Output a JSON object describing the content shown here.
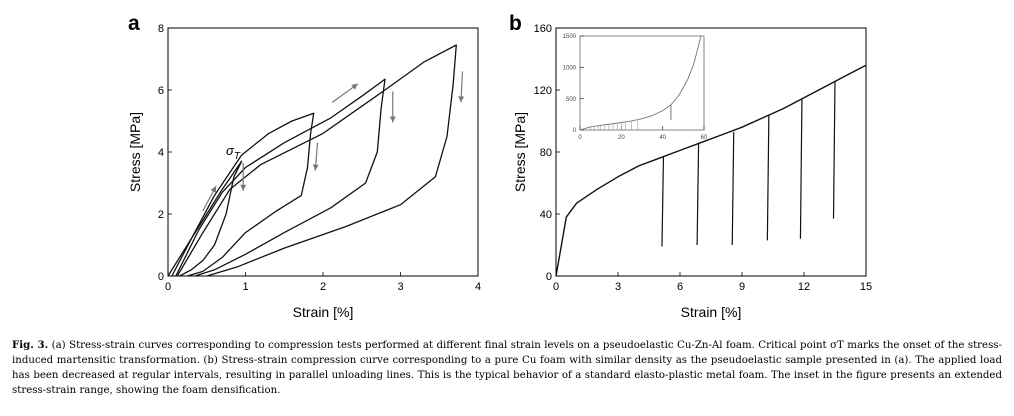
{
  "figure": {
    "caption_label": "Fig. 3.",
    "caption_text": "(a) Stress-strain curves corresponding to compression tests performed at different final strain levels on a pseudoelastic Cu-Zn-Al foam. Critical point σT marks the onset of the stress-induced martensitic transformation. (b) Stress-strain compression curve corresponding to a pure Cu foam with similar density as the pseudoelastic sample presented in (a). The applied load has been decreased at regular intervals, resulting in parallel unloading lines. This is the typical behavior of a standard elasto-plastic metal foam. The inset in the figure presents an extended stress-strain range, showing the foam densification."
  },
  "chart_data": [
    {
      "panel": "a",
      "type": "line",
      "xlabel": "Strain [%]",
      "ylabel": "Stress [MPa]",
      "xlim": [
        0,
        4
      ],
      "ylim": [
        0,
        8
      ],
      "xticks": [
        0,
        1,
        2,
        3,
        4
      ],
      "yticks": [
        0,
        2,
        4,
        6,
        8
      ],
      "annotation": "σT",
      "series": [
        {
          "values": [
            [
              0.0,
              0.0
            ],
            [
              0.2,
              0.8
            ],
            [
              0.45,
              1.8
            ],
            [
              0.7,
              2.8
            ],
            [
              0.95,
              3.7
            ],
            [
              0.85,
              3.2
            ],
            [
              0.75,
              2.0
            ],
            [
              0.6,
              1.0
            ],
            [
              0.45,
              0.5
            ],
            [
              0.3,
              0.2
            ],
            [
              0.15,
              0.0
            ]
          ]
        },
        {
          "values": [
            [
              0.05,
              0.0
            ],
            [
              0.3,
              1.2
            ],
            [
              0.6,
              2.6
            ],
            [
              0.95,
              3.9
            ],
            [
              1.3,
              4.6
            ],
            [
              1.6,
              5.0
            ],
            [
              1.88,
              5.25
            ],
            [
              1.84,
              4.6
            ],
            [
              1.8,
              3.5
            ],
            [
              1.72,
              2.6
            ],
            [
              1.4,
              2.1
            ],
            [
              1.0,
              1.4
            ],
            [
              0.7,
              0.6
            ],
            [
              0.45,
              0.15
            ],
            [
              0.25,
              0.0
            ]
          ]
        },
        {
          "values": [
            [
              0.1,
              0.0
            ],
            [
              0.4,
              1.5
            ],
            [
              0.7,
              2.7
            ],
            [
              1.0,
              3.5
            ],
            [
              1.5,
              4.3
            ],
            [
              2.1,
              5.1
            ],
            [
              2.5,
              5.8
            ],
            [
              2.8,
              6.35
            ],
            [
              2.75,
              5.4
            ],
            [
              2.7,
              4.0
            ],
            [
              2.55,
              3.0
            ],
            [
              2.1,
              2.2
            ],
            [
              1.5,
              1.4
            ],
            [
              1.0,
              0.7
            ],
            [
              0.6,
              0.2
            ],
            [
              0.35,
              0.0
            ]
          ]
        },
        {
          "values": [
            [
              0.12,
              0.0
            ],
            [
              0.45,
              1.4
            ],
            [
              0.8,
              2.8
            ],
            [
              1.2,
              3.6
            ],
            [
              2.0,
              4.6
            ],
            [
              2.8,
              6.0
            ],
            [
              3.3,
              6.9
            ],
            [
              3.72,
              7.45
            ],
            [
              3.68,
              6.2
            ],
            [
              3.6,
              4.5
            ],
            [
              3.45,
              3.2
            ],
            [
              3.0,
              2.3
            ],
            [
              2.3,
              1.6
            ],
            [
              1.5,
              0.9
            ],
            [
              0.9,
              0.3
            ],
            [
              0.5,
              0.0
            ]
          ]
        }
      ],
      "arrows": [
        {
          "from": [
            0.45,
            2.1
          ],
          "to": [
            0.62,
            2.9
          ]
        },
        {
          "from": [
            0.97,
            3.65
          ],
          "to": [
            0.97,
            2.75
          ]
        },
        {
          "from": [
            1.93,
            4.3
          ],
          "to": [
            1.9,
            3.4
          ]
        },
        {
          "from": [
            2.12,
            5.6
          ],
          "to": [
            2.45,
            6.2
          ]
        },
        {
          "from": [
            2.9,
            5.95
          ],
          "to": [
            2.9,
            4.95
          ]
        },
        {
          "from": [
            3.8,
            6.6
          ],
          "to": [
            3.78,
            5.6
          ]
        }
      ]
    },
    {
      "panel": "b",
      "type": "line",
      "xlabel": "Strain [%]",
      "ylabel": "Stress [MPa]",
      "xlim": [
        0,
        15
      ],
      "ylim": [
        0,
        160
      ],
      "xticks": [
        0,
        3,
        6,
        9,
        12,
        15
      ],
      "yticks": [
        0,
        40,
        80,
        120,
        160
      ],
      "loading": [
        [
          0,
          0
        ],
        [
          0.2,
          15
        ],
        [
          0.5,
          38
        ],
        [
          1,
          47
        ],
        [
          2,
          56
        ],
        [
          3,
          64
        ],
        [
          4,
          71
        ],
        [
          5,
          76
        ],
        [
          6,
          81
        ],
        [
          7,
          86
        ],
        [
          8,
          91
        ],
        [
          9,
          96
        ],
        [
          10,
          102
        ],
        [
          11,
          108
        ],
        [
          12,
          115
        ],
        [
          13,
          122
        ],
        [
          14,
          129
        ],
        [
          15,
          136
        ]
      ],
      "unloading": [
        [
          5.2,
          77,
          19
        ],
        [
          6.9,
          86,
          20
        ],
        [
          8.6,
          93,
          20
        ],
        [
          10.3,
          104,
          23
        ],
        [
          11.9,
          114,
          24
        ],
        [
          13.5,
          126,
          37
        ]
      ],
      "inset": {
        "xlim": [
          0,
          60
        ],
        "ylim": [
          0,
          1500
        ],
        "xticks": [
          0,
          20,
          40,
          60
        ],
        "yticks": [
          0,
          500,
          1000,
          1500
        ],
        "curve": [
          [
            0,
            0
          ],
          [
            5,
            50
          ],
          [
            10,
            75
          ],
          [
            15,
            95
          ],
          [
            20,
            120
          ],
          [
            25,
            145
          ],
          [
            30,
            180
          ],
          [
            35,
            230
          ],
          [
            40,
            310
          ],
          [
            44,
            400
          ],
          [
            48,
            560
          ],
          [
            52,
            800
          ],
          [
            55,
            1050
          ],
          [
            57,
            1300
          ],
          [
            58.5,
            1500
          ]
        ],
        "unload_x": [
          5,
          7,
          9,
          10,
          12,
          14,
          16,
          18,
          20,
          22,
          25,
          28
        ],
        "long_unload": [
          44,
          400,
          160
        ]
      }
    }
  ]
}
